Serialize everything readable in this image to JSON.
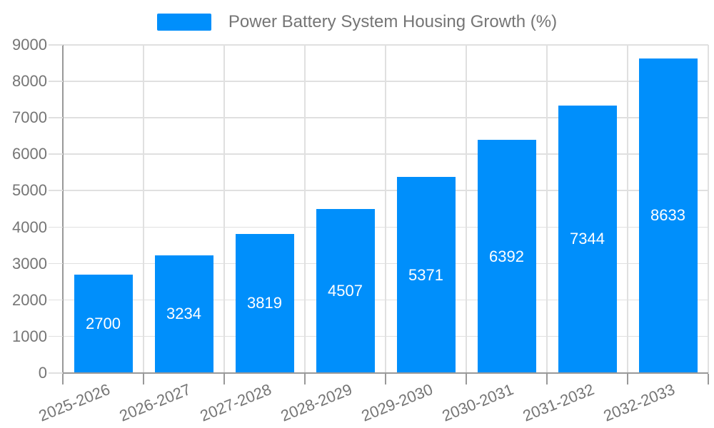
{
  "chart_data": {
    "type": "bar",
    "title": "Power Battery System Housing Growth (%)",
    "legend_position": "top",
    "categories": [
      "2025-2026",
      "2026-2027",
      "2027-2028",
      "2028-2029",
      "2029-2030",
      "2030-2031",
      "2031-2032",
      "2032-2033"
    ],
    "values": [
      2700,
      3234,
      3819,
      4507,
      5371,
      6392,
      7344,
      8633
    ],
    "series": [
      {
        "name": "Power Battery System Housing Growth (%)",
        "values": [
          2700,
          3234,
          3819,
          4507,
          5371,
          6392,
          7344,
          8633
        ]
      }
    ],
    "xlabel": "",
    "ylabel": "",
    "ylim": [
      0,
      9000
    ],
    "yticks": [
      0,
      1000,
      2000,
      3000,
      4000,
      5000,
      6000,
      7000,
      8000,
      9000
    ],
    "grid": true,
    "bar_value_labels_visible": true,
    "colors": {
      "bar": "#008FFB",
      "grid": "#E0E0E0",
      "axis": "#999999",
      "text": "#757575",
      "bar_label": "#FFFFFF",
      "background": "#FFFFFF"
    }
  }
}
